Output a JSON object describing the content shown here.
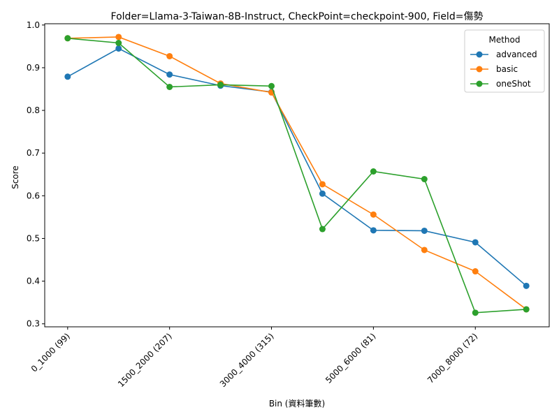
{
  "chart_data": {
    "type": "line",
    "title": "Folder=Llama-3-Taiwan-8B-Instruct, CheckPoint=checkpoint-900, Field=傷勢",
    "xlabel": "Bin (資料筆數)",
    "ylabel": "Score",
    "ylim": [
      0.293,
      1.003
    ],
    "yticks": [
      "0.3",
      "0.4",
      "0.5",
      "0.6",
      "0.7",
      "0.8",
      "0.9",
      "1.0"
    ],
    "x_positions": [
      0,
      1,
      2,
      3,
      4,
      5,
      6,
      7,
      8,
      9
    ],
    "xticks": [
      {
        "pos": 0,
        "label": "0_1000 (99)"
      },
      {
        "pos": 2,
        "label": "1500_2000 (207)"
      },
      {
        "pos": 4,
        "label": "3000_4000 (315)"
      },
      {
        "pos": 6,
        "label": "5000_6000 (81)"
      },
      {
        "pos": 8,
        "label": "7000_8000 (72)"
      }
    ],
    "grid": false,
    "legend": {
      "title": "Method",
      "placement": "top-right"
    },
    "series": [
      {
        "name": "advanced",
        "color": "#1f77b4",
        "values": [
          0.879,
          0.945,
          0.884,
          0.858,
          0.843,
          0.605,
          0.519,
          0.518,
          0.491,
          0.389
        ]
      },
      {
        "name": "basic",
        "color": "#ff7f0e",
        "values": [
          0.969,
          0.972,
          0.927,
          0.863,
          0.842,
          0.627,
          0.556,
          0.473,
          0.423,
          0.334
        ]
      },
      {
        "name": "oneShot",
        "color": "#2ca02c",
        "values": [
          0.969,
          0.958,
          0.855,
          0.86,
          0.857,
          0.522,
          0.657,
          0.639,
          0.326,
          0.334
        ]
      }
    ]
  }
}
